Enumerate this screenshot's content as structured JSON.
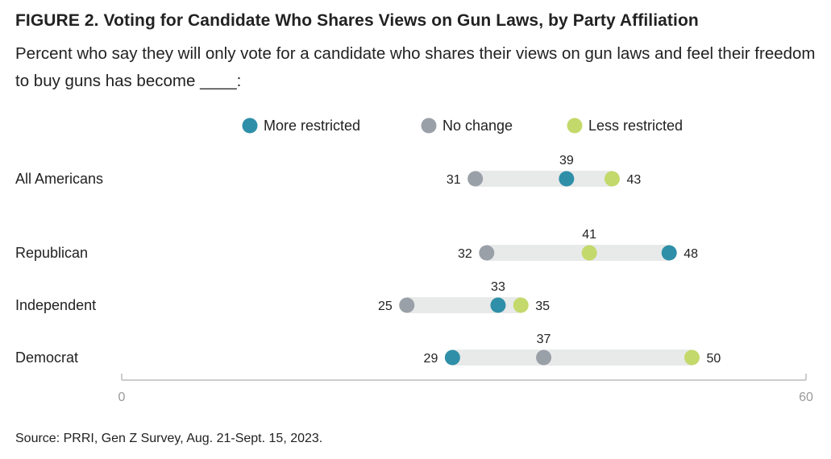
{
  "title": "FIGURE 2. Voting for Candidate Who Shares Views on Gun Laws, by Party Affiliation",
  "subtitle": "Percent who say they will only vote for a candidate who shares their views on gun laws and feel their freedom to buy guns has become ____:",
  "source": "Source: PRRI, Gen Z Survey, Aug. 21-Sept. 15, 2023.",
  "colors": {
    "more_restricted": "#2f8fa8",
    "no_change": "#9aa0a8",
    "less_restricted": "#c3d96b",
    "range_bar": "#e8e9e9",
    "axis": "#cccccc"
  },
  "chart_data": {
    "type": "dot-range",
    "categories": [
      "All Americans",
      "Republican",
      "Independent",
      "Democrat"
    ],
    "series": [
      {
        "name": "More restricted",
        "values": [
          39,
          48,
          33,
          29
        ]
      },
      {
        "name": "No change",
        "values": [
          31,
          32,
          25,
          37
        ]
      },
      {
        "name": "Less restricted",
        "values": [
          43,
          41,
          35,
          50
        ]
      }
    ],
    "xlim": [
      0,
      60
    ],
    "xticks": [
      "0",
      "60"
    ],
    "legend_position": "top",
    "grid": false
  }
}
